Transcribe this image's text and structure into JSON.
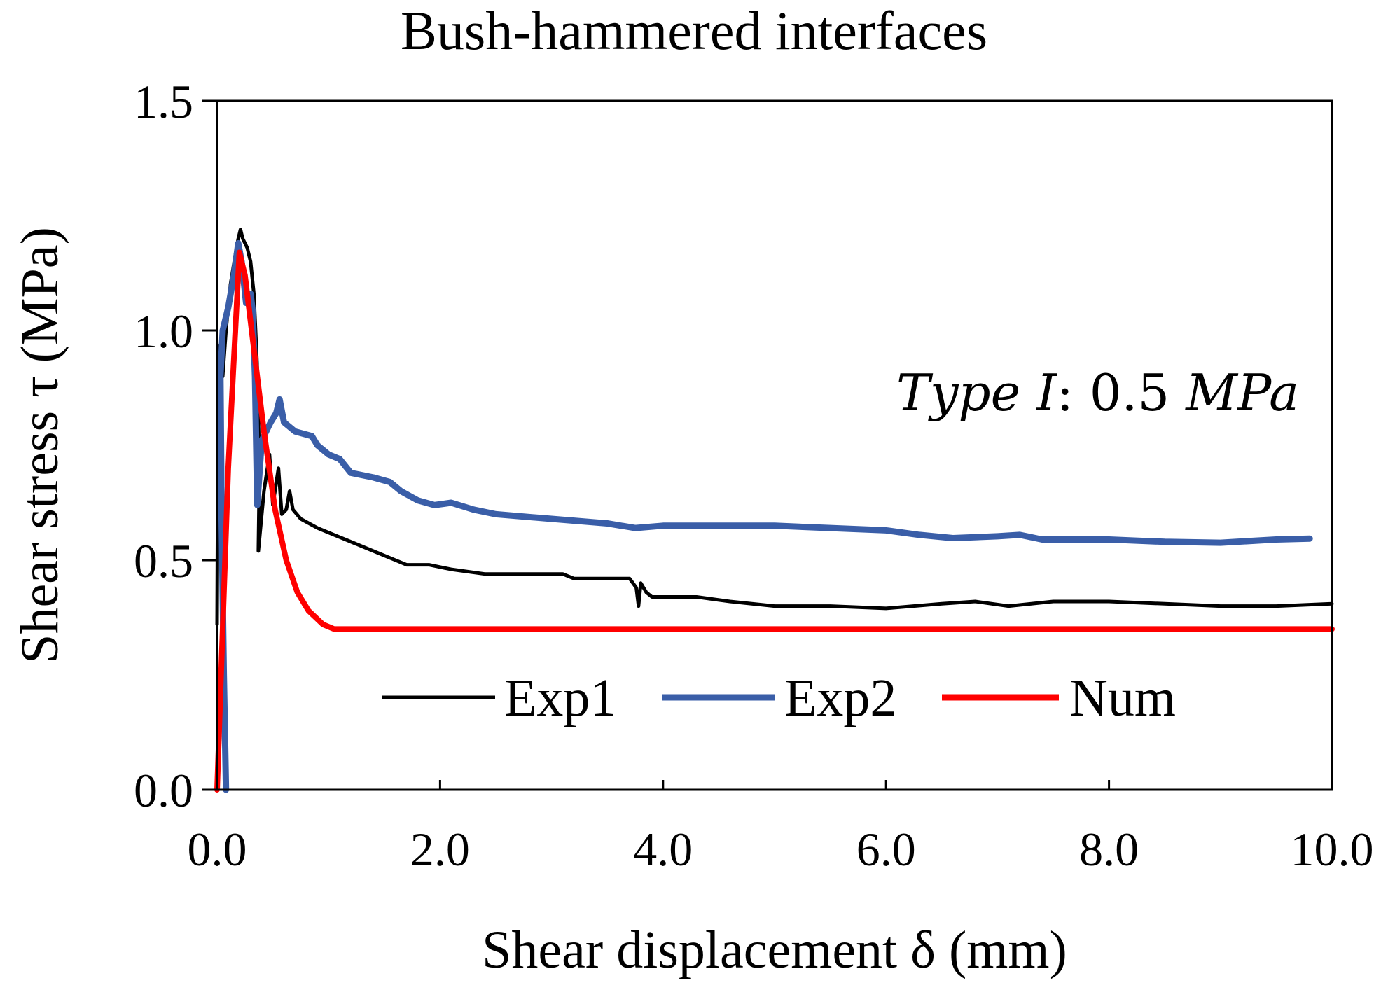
{
  "chart_data": {
    "type": "line",
    "title": "Bush-hammered interfaces",
    "xlabel": "Shear displacement δ (mm)",
    "ylabel": "Shear stress τ (MPa)",
    "xlim": [
      0,
      10
    ],
    "ylim": [
      0,
      1.5
    ],
    "x_ticks": [
      0,
      2,
      4,
      6,
      8,
      10
    ],
    "x_tick_labels": [
      "0.0",
      "2.0",
      "4.0",
      "6.0",
      "8.0",
      "10.0"
    ],
    "y_ticks": [
      0,
      0.5,
      1.0,
      1.5
    ],
    "y_tick_labels": [
      "0.0",
      "0.5",
      "1.0",
      "1.5"
    ],
    "grid": false,
    "legend_position": "center",
    "annotation": {
      "type_word": "Type",
      "type_id": "I",
      "separator": ":",
      "value": "0.5",
      "unit": "MPa"
    },
    "series": [
      {
        "name": "Exp1",
        "color": "#000000",
        "points": [
          [
            0,
            0.36
          ],
          [
            0.01,
            0.95
          ],
          [
            0.03,
            0.97
          ],
          [
            0.05,
            0.9
          ],
          [
            0.08,
            1.0
          ],
          [
            0.12,
            1.1
          ],
          [
            0.16,
            1.16
          ],
          [
            0.19,
            1.2
          ],
          [
            0.21,
            1.22
          ],
          [
            0.23,
            1.2
          ],
          [
            0.27,
            1.18
          ],
          [
            0.3,
            1.15
          ],
          [
            0.33,
            1.08
          ],
          [
            0.36,
            0.92
          ],
          [
            0.38,
            0.7
          ],
          [
            0.37,
            0.52
          ],
          [
            0.42,
            0.65
          ],
          [
            0.47,
            0.73
          ],
          [
            0.5,
            0.62
          ],
          [
            0.55,
            0.7
          ],
          [
            0.58,
            0.6
          ],
          [
            0.62,
            0.61
          ],
          [
            0.65,
            0.65
          ],
          [
            0.68,
            0.61
          ],
          [
            0.75,
            0.59
          ],
          [
            0.9,
            0.57
          ],
          [
            1.1,
            0.55
          ],
          [
            1.3,
            0.53
          ],
          [
            1.5,
            0.51
          ],
          [
            1.6,
            0.5
          ],
          [
            1.7,
            0.49
          ],
          [
            1.9,
            0.49
          ],
          [
            2.1,
            0.48
          ],
          [
            2.4,
            0.47
          ],
          [
            2.8,
            0.47
          ],
          [
            3.1,
            0.47
          ],
          [
            3.2,
            0.46
          ],
          [
            3.5,
            0.46
          ],
          [
            3.7,
            0.46
          ],
          [
            3.76,
            0.44
          ],
          [
            3.78,
            0.4
          ],
          [
            3.8,
            0.45
          ],
          [
            3.85,
            0.43
          ],
          [
            3.9,
            0.42
          ],
          [
            4.3,
            0.42
          ],
          [
            4.6,
            0.41
          ],
          [
            5.0,
            0.4
          ],
          [
            5.5,
            0.4
          ],
          [
            6.0,
            0.395
          ],
          [
            6.5,
            0.405
          ],
          [
            6.8,
            0.41
          ],
          [
            7.1,
            0.4
          ],
          [
            7.5,
            0.41
          ],
          [
            8.0,
            0.41
          ],
          [
            8.5,
            0.405
          ],
          [
            9.0,
            0.4
          ],
          [
            9.5,
            0.4
          ],
          [
            10.0,
            0.405
          ]
        ]
      },
      {
        "name": "Exp2",
        "color": "#3a5ea8",
        "points": [
          [
            0.08,
            0.0
          ],
          [
            0.06,
            0.25
          ],
          [
            0.04,
            0.6
          ],
          [
            0.03,
            0.9
          ],
          [
            0.05,
            1.0
          ],
          [
            0.1,
            1.05
          ],
          [
            0.15,
            1.12
          ],
          [
            0.19,
            1.19
          ],
          [
            0.22,
            1.15
          ],
          [
            0.26,
            1.06
          ],
          [
            0.3,
            1.08
          ],
          [
            0.32,
            1.04
          ],
          [
            0.34,
            0.9
          ],
          [
            0.36,
            0.62
          ],
          [
            0.4,
            0.76
          ],
          [
            0.48,
            0.8
          ],
          [
            0.53,
            0.82
          ],
          [
            0.56,
            0.85
          ],
          [
            0.6,
            0.8
          ],
          [
            0.7,
            0.78
          ],
          [
            0.85,
            0.77
          ],
          [
            0.9,
            0.75
          ],
          [
            1.0,
            0.73
          ],
          [
            1.1,
            0.72
          ],
          [
            1.2,
            0.69
          ],
          [
            1.4,
            0.68
          ],
          [
            1.55,
            0.67
          ],
          [
            1.65,
            0.65
          ],
          [
            1.8,
            0.63
          ],
          [
            1.95,
            0.62
          ],
          [
            2.1,
            0.625
          ],
          [
            2.3,
            0.61
          ],
          [
            2.5,
            0.6
          ],
          [
            3.0,
            0.59
          ],
          [
            3.5,
            0.58
          ],
          [
            3.75,
            0.57
          ],
          [
            4.0,
            0.575
          ],
          [
            4.5,
            0.575
          ],
          [
            5.0,
            0.575
          ],
          [
            5.5,
            0.57
          ],
          [
            6.0,
            0.565
          ],
          [
            6.3,
            0.555
          ],
          [
            6.6,
            0.548
          ],
          [
            7.0,
            0.552
          ],
          [
            7.2,
            0.555
          ],
          [
            7.4,
            0.545
          ],
          [
            8.0,
            0.545
          ],
          [
            8.5,
            0.54
          ],
          [
            9.0,
            0.538
          ],
          [
            9.5,
            0.545
          ],
          [
            9.8,
            0.547
          ]
        ]
      },
      {
        "name": "Num",
        "color": "#ff0000",
        "points": [
          [
            0.0,
            0.0
          ],
          [
            0.1,
            0.7
          ],
          [
            0.2,
            1.17
          ],
          [
            0.25,
            1.12
          ],
          [
            0.32,
            0.98
          ],
          [
            0.42,
            0.78
          ],
          [
            0.52,
            0.61
          ],
          [
            0.62,
            0.5
          ],
          [
            0.72,
            0.43
          ],
          [
            0.82,
            0.39
          ],
          [
            0.95,
            0.36
          ],
          [
            1.05,
            0.35
          ],
          [
            1.2,
            0.35
          ],
          [
            10.0,
            0.35
          ]
        ]
      }
    ]
  }
}
